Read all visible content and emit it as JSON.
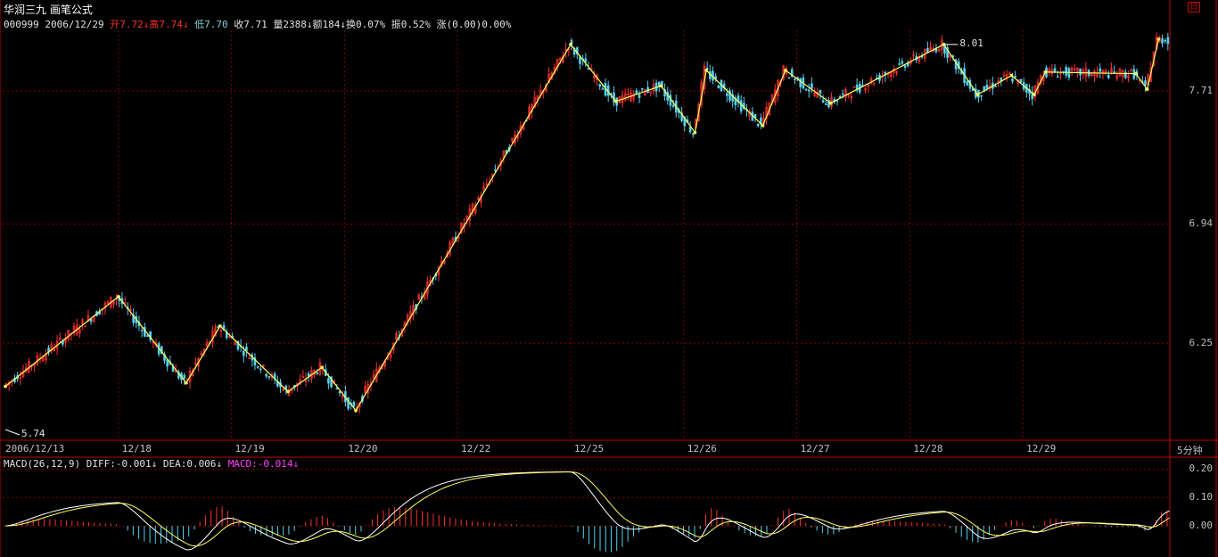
{
  "header": {
    "stock_name": "华润三九",
    "formula": "画笔公式",
    "code": "000999",
    "date": "2006/12/29",
    "open_label": "开",
    "open": "7.72",
    "high_label": "高",
    "high": "7.74",
    "low_label": "低",
    "low": "7.70",
    "close_label": "收",
    "close": "7.71",
    "volume_label": "量",
    "volume": "2388",
    "amount_label": "额",
    "amount": "184",
    "turnover_label": "换",
    "turnover": "0.07%",
    "amplitude_label": "振",
    "amplitude": "0.52%",
    "change_label": "涨",
    "change": "(0.00)0.00%",
    "down_arrow": "↓",
    "menu_icon": "日"
  },
  "macd_header": {
    "name": "MACD(26,12,9)",
    "diff": "DIFF:-0.001",
    "dea": "DEA:0.006",
    "macd": "MACD:-0.014",
    "arrow": "↓"
  },
  "chart_data": {
    "type": "candlestick",
    "period_label": "5分钟",
    "x_tick_labels": [
      "2006/12/13",
      "12/18",
      "12/19",
      "12/20",
      "12/22",
      "12/25",
      "12/26",
      "12/27",
      "12/28",
      "12/29"
    ],
    "y_tick_labels": [
      "7.71",
      "6.94",
      "6.25"
    ],
    "ylim": [
      5.74,
      8.01
    ],
    "annotations": {
      "max_label": "8.01",
      "min_label": "5.74",
      "last_price_label": "7.71"
    },
    "zigzag_points": [
      [
        0,
        6.0
      ],
      [
        10,
        6.52
      ],
      [
        16,
        6.02
      ],
      [
        19,
        6.35
      ],
      [
        25,
        5.97
      ],
      [
        28,
        6.11
      ],
      [
        31,
        5.86
      ],
      [
        50,
        7.98
      ],
      [
        54,
        7.65
      ],
      [
        58,
        7.74
      ],
      [
        61,
        7.47
      ],
      [
        62,
        7.83
      ],
      [
        67,
        7.51
      ],
      [
        69,
        7.83
      ],
      [
        73,
        7.64
      ],
      [
        83,
        7.98
      ],
      [
        86,
        7.69
      ],
      [
        89,
        7.8
      ],
      [
        91,
        7.69
      ],
      [
        92,
        7.82
      ],
      [
        100,
        7.81
      ],
      [
        101,
        7.72
      ],
      [
        102,
        8.01
      ]
    ],
    "macd_axis_labels": [
      "0.20",
      "0.10",
      "0.00"
    ],
    "macd_ylim": [
      -0.1,
      0.22
    ]
  },
  "colors": {
    "up": "#ff3030",
    "down": "#54d2f0",
    "zigzag": "#ffff60",
    "grid": "#800000",
    "border": "#c00000",
    "diff": "#ffffff",
    "dea": "#ffff60"
  }
}
